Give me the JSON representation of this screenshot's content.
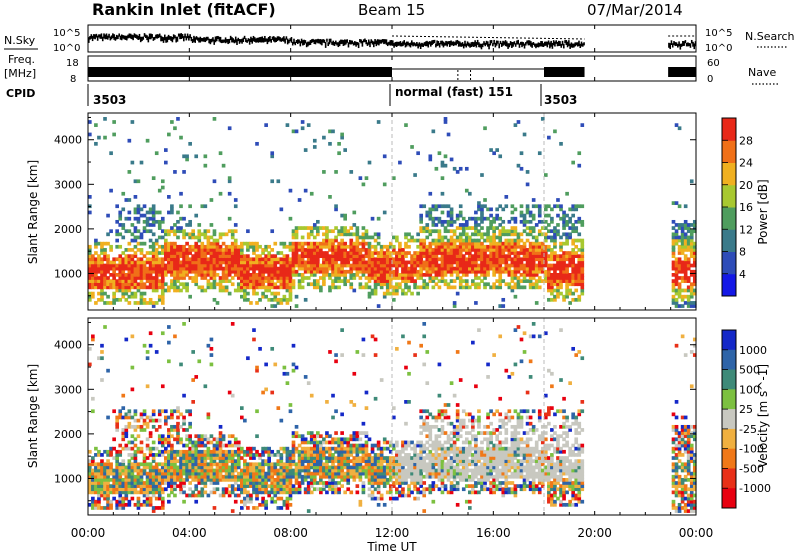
{
  "header": {
    "station": "Rankin Inlet (fitACF)",
    "beam": "Beam 15",
    "date": "07/Mar/2014"
  },
  "left_labels": {
    "nsky": "N.Sky",
    "freq_line1": "Freq.",
    "freq_line2": "[MHz]",
    "cpid": "CPID"
  },
  "right_labels": {
    "nsearch": "N.Search",
    "nave": "Nave"
  },
  "noise_panel": {
    "left_ticks": [
      "10^5",
      "10^0"
    ],
    "right_ticks": [
      "10^5",
      "10^0"
    ]
  },
  "freq_panel": {
    "left_ticks": [
      "18",
      "8"
    ],
    "right_ticks": [
      "60",
      "0"
    ]
  },
  "cpid_segments": [
    {
      "label": "3503",
      "start_hour": 0
    },
    {
      "label": "normal (fast) 151",
      "start_hour": 12
    },
    {
      "label": "3503",
      "start_hour": 18
    }
  ],
  "chart_data": [
    {
      "type": "heatmap",
      "name": "power",
      "ylabel": "Slant Range [km]",
      "ylim": [
        180,
        4600
      ],
      "yticks": [
        1000,
        2000,
        3000,
        4000
      ],
      "colorbar_label": "Power [dB]",
      "colorbar_ticks": [
        4,
        8,
        12,
        16,
        20,
        24,
        28
      ],
      "colorbar_colors": [
        "#1418e6",
        "#2e4cb8",
        "#3a7a8a",
        "#4f9d5e",
        "#a8c830",
        "#f0b020",
        "#f07018",
        "#e82818"
      ]
    },
    {
      "type": "heatmap",
      "name": "velocity",
      "ylabel": "Slant Range [km]",
      "ylim": [
        180,
        4600
      ],
      "yticks": [
        1000,
        2000,
        3000,
        4000
      ],
      "colorbar_label": "Velocity [m s^-1]",
      "colorbar_ticks": [
        1000,
        500,
        100,
        25,
        -25,
        -100,
        -500,
        -1000
      ],
      "colorbar_colors": [
        "#1428c8",
        "#2e64a8",
        "#3e8a78",
        "#7cc040",
        "#c8c8c0",
        "#f0b040",
        "#f07818",
        "#e83018",
        "#e80010"
      ]
    }
  ],
  "x_axis": {
    "label": "Time UT",
    "ticks": [
      "00:00",
      "04:00",
      "08:00",
      "12:00",
      "16:00",
      "20:00",
      "00:00"
    ],
    "range_hours": [
      0,
      24
    ]
  }
}
